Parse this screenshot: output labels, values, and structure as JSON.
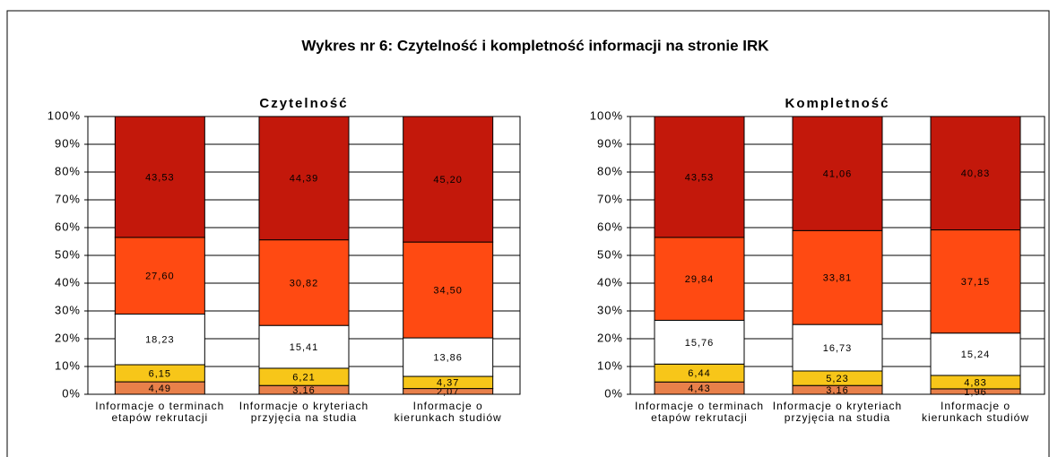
{
  "title": "Wykres nr 6: Czytelność i kompletność informacji na stronie IRK",
  "chart_data": [
    {
      "type": "bar",
      "stacked": true,
      "title": "Czytelność",
      "categories": [
        "Informacje o terminach etapów rekrutacji",
        "Informacje o kryteriach przyjęcia na studia",
        "Informacje o kierunkach studiów"
      ],
      "series": [
        {
          "color": "#e8804a",
          "values": [
            4.49,
            3.16,
            2.07
          ],
          "value_labels": [
            "4,49",
            "3,16",
            "2,07"
          ]
        },
        {
          "color": "#f7c619",
          "values": [
            6.15,
            6.21,
            4.37
          ],
          "value_labels": [
            "6,15",
            "6,21",
            "4,37"
          ]
        },
        {
          "color": "#ffffff",
          "values": [
            18.23,
            15.41,
            13.86
          ],
          "value_labels": [
            "18,23",
            "15,41",
            "13,86"
          ]
        },
        {
          "color": "#ff4a12",
          "values": [
            27.6,
            30.82,
            34.5
          ],
          "value_labels": [
            "27,60",
            "30,82",
            "34,50"
          ]
        },
        {
          "color": "#c3180b",
          "values": [
            43.53,
            44.39,
            45.2
          ],
          "value_labels": [
            "43,53",
            "44,39",
            "45,20"
          ]
        }
      ],
      "ylim": [
        0,
        100
      ],
      "yticks": [
        {
          "value": 0,
          "label": "0%"
        },
        {
          "value": 10,
          "label": "10%"
        },
        {
          "value": 20,
          "label": "20%"
        },
        {
          "value": 30,
          "label": "30%"
        },
        {
          "value": 40,
          "label": "40%"
        },
        {
          "value": 50,
          "label": "50%"
        },
        {
          "value": 60,
          "label": "60%"
        },
        {
          "value": 70,
          "label": "70%"
        },
        {
          "value": 80,
          "label": "80%"
        },
        {
          "value": 90,
          "label": "90%"
        },
        {
          "value": 100,
          "label": "100%"
        }
      ],
      "grid": true
    },
    {
      "type": "bar",
      "stacked": true,
      "title": "Kompletność",
      "categories": [
        "Informacje o terminach etapów rekrutacji",
        "Informacje o kryteriach przyjęcia na studia",
        "Informacje o kierunkach studiów"
      ],
      "series": [
        {
          "color": "#e8804a",
          "values": [
            4.43,
            3.16,
            1.96
          ],
          "value_labels": [
            "4,43",
            "3,16",
            "1,96"
          ]
        },
        {
          "color": "#f7c619",
          "values": [
            6.44,
            5.23,
            4.83
          ],
          "value_labels": [
            "6,44",
            "5,23",
            "4,83"
          ]
        },
        {
          "color": "#ffffff",
          "values": [
            15.76,
            16.73,
            15.24
          ],
          "value_labels": [
            "15,76",
            "16,73",
            "15,24"
          ]
        },
        {
          "color": "#ff4a12",
          "values": [
            29.84,
            33.81,
            37.15
          ],
          "value_labels": [
            "29,84",
            "33,81",
            "37,15"
          ]
        },
        {
          "color": "#c3180b",
          "values": [
            43.53,
            41.06,
            40.83
          ],
          "value_labels": [
            "43,53",
            "41,06",
            "40,83"
          ]
        }
      ],
      "ylim": [
        0,
        100
      ],
      "yticks": [
        {
          "value": 0,
          "label": "0%"
        },
        {
          "value": 10,
          "label": "10%"
        },
        {
          "value": 20,
          "label": "20%"
        },
        {
          "value": 30,
          "label": "30%"
        },
        {
          "value": 40,
          "label": "40%"
        },
        {
          "value": 50,
          "label": "50%"
        },
        {
          "value": 60,
          "label": "60%"
        },
        {
          "value": 70,
          "label": "70%"
        },
        {
          "value": 80,
          "label": "80%"
        },
        {
          "value": 90,
          "label": "90%"
        },
        {
          "value": 100,
          "label": "100%"
        }
      ],
      "grid": true
    }
  ]
}
